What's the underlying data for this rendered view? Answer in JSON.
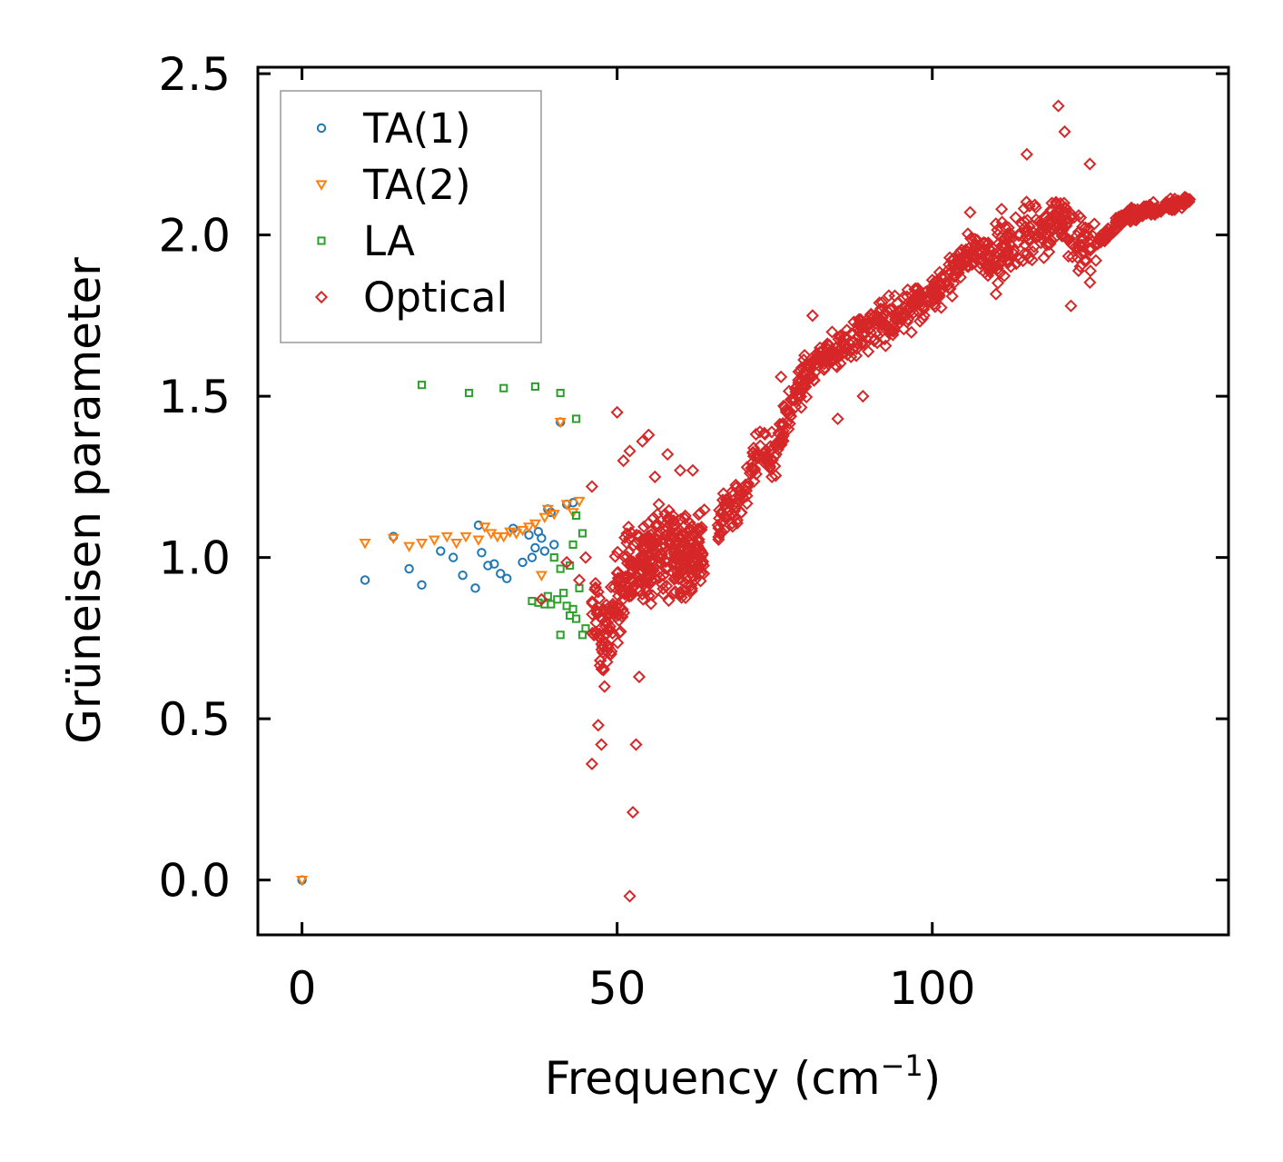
{
  "chart_data": {
    "type": "scatter",
    "title": "",
    "xlabel": "Frequency (cm",
    "xlabel_sup": "−1",
    "xlabel_close": ")",
    "ylabel": "Grüneisen parameter",
    "xlim": [
      -7,
      147
    ],
    "ylim": [
      -0.17,
      2.52
    ],
    "xticks": [
      0,
      50,
      100
    ],
    "xtick_labels": [
      "0",
      "50",
      "100"
    ],
    "yticks": [
      0.0,
      0.5,
      1.0,
      1.5,
      2.0,
      2.5
    ],
    "ytick_labels": [
      "0.0",
      "0.5",
      "1.0",
      "1.5",
      "2.0",
      "2.5"
    ],
    "grid": false,
    "legend_position": "top-left",
    "series": [
      {
        "name": "TA(1)",
        "marker": "circle",
        "color": "#1f77b4",
        "points": [
          [
            0,
            0
          ],
          [
            10,
            0.93
          ],
          [
            14.5,
            1.065
          ],
          [
            17,
            0.965
          ],
          [
            19,
            0.915
          ],
          [
            22,
            1.02
          ],
          [
            24,
            1.0
          ],
          [
            25.5,
            0.945
          ],
          [
            27.5,
            0.905
          ],
          [
            28.5,
            1.015
          ],
          [
            29.5,
            0.975
          ],
          [
            30.5,
            0.98
          ],
          [
            31.5,
            0.95
          ],
          [
            32.5,
            0.935
          ],
          [
            33.5,
            1.09
          ],
          [
            35,
            0.985
          ],
          [
            36,
            1.07
          ],
          [
            37,
            1.03
          ],
          [
            37.5,
            1.08
          ],
          [
            38,
            1.06
          ],
          [
            38.5,
            1.02
          ],
          [
            39,
            1.15
          ],
          [
            39.5,
            1.14
          ],
          [
            40,
            1.04
          ],
          [
            41,
            1.42
          ],
          [
            42,
            1.165
          ],
          [
            43,
            1.17
          ],
          [
            28,
            1.1
          ],
          [
            36.5,
            1.0
          ]
        ]
      },
      {
        "name": "TA(2)",
        "marker": "triangle-down",
        "color": "#ff7f0e",
        "points": [
          [
            0,
            0
          ],
          [
            10,
            1.045
          ],
          [
            14.5,
            1.06
          ],
          [
            17,
            1.035
          ],
          [
            19,
            1.045
          ],
          [
            21,
            1.055
          ],
          [
            23,
            1.065
          ],
          [
            24.5,
            1.045
          ],
          [
            26,
            1.065
          ],
          [
            28,
            1.055
          ],
          [
            29,
            1.095
          ],
          [
            30,
            1.075
          ],
          [
            31,
            1.065
          ],
          [
            32,
            1.065
          ],
          [
            33,
            1.08
          ],
          [
            34,
            1.075
          ],
          [
            35,
            1.085
          ],
          [
            36,
            1.095
          ],
          [
            37,
            1.105
          ],
          [
            38,
            0.945
          ],
          [
            38.5,
            1.125
          ],
          [
            39,
            1.15
          ],
          [
            40,
            1.135
          ],
          [
            41,
            1.42
          ],
          [
            42,
            1.165
          ],
          [
            43,
            1.14
          ],
          [
            44,
            1.175
          ]
        ]
      },
      {
        "name": "LA",
        "marker": "square",
        "color": "#2ca02c",
        "points": [
          [
            19,
            1.535
          ],
          [
            26.5,
            1.51
          ],
          [
            32,
            1.525
          ],
          [
            37,
            1.53
          ],
          [
            41,
            1.51
          ],
          [
            43.5,
            1.43
          ],
          [
            36.5,
            0.865
          ],
          [
            37.5,
            0.86
          ],
          [
            38.5,
            0.855
          ],
          [
            39.5,
            0.855
          ],
          [
            40.5,
            0.87
          ],
          [
            41,
            0.76
          ],
          [
            41.5,
            0.89
          ],
          [
            42,
            0.85
          ],
          [
            42.5,
            0.82
          ],
          [
            43,
            0.84
          ],
          [
            43.5,
            0.81
          ],
          [
            44,
            0.905
          ],
          [
            44.5,
            0.76
          ],
          [
            45,
            0.78
          ],
          [
            39,
            0.88
          ],
          [
            40,
            1.0
          ],
          [
            41,
            0.965
          ],
          [
            42.5,
            0.975
          ],
          [
            43,
            1.04
          ],
          [
            43.5,
            1.13
          ],
          [
            44.5,
            1.075
          ]
        ]
      },
      {
        "name": "Optical",
        "marker": "diamond",
        "color": "#d62728",
        "generated": true,
        "points": [
          [
            38,
            0.87
          ],
          [
            42,
            0.985
          ],
          [
            44,
            0.93
          ],
          [
            45,
            1.0
          ],
          [
            46,
            1.22
          ],
          [
            46,
            0.36
          ],
          [
            47,
            0.48
          ],
          [
            47.5,
            0.42
          ],
          [
            48,
            0.6
          ],
          [
            49,
            0.7
          ],
          [
            50,
            1.45
          ],
          [
            51,
            1.3
          ],
          [
            52,
            1.33
          ],
          [
            52.5,
            0.21
          ],
          [
            53,
            0.42
          ],
          [
            53.5,
            0.63
          ],
          [
            54,
            1.36
          ],
          [
            55,
            1.38
          ],
          [
            56,
            1.25
          ],
          [
            58,
            1.32
          ],
          [
            60,
            1.27
          ],
          [
            62,
            1.27
          ],
          [
            52,
            -0.05
          ],
          [
            66,
            1.1
          ],
          [
            68,
            1.17
          ],
          [
            76,
            1.56
          ],
          [
            81,
            1.75
          ],
          [
            85,
            1.43
          ],
          [
            89,
            1.5
          ],
          [
            96,
            1.73
          ],
          [
            100,
            1.86
          ],
          [
            106,
            2.07
          ],
          [
            111,
            2.08
          ],
          [
            115,
            2.25
          ],
          [
            120,
            2.4
          ],
          [
            121,
            2.32
          ],
          [
            122,
            1.78
          ],
          [
            125,
            2.22
          ],
          [
            130,
            2.06
          ],
          [
            138,
            2.1
          ]
        ]
      }
    ]
  }
}
